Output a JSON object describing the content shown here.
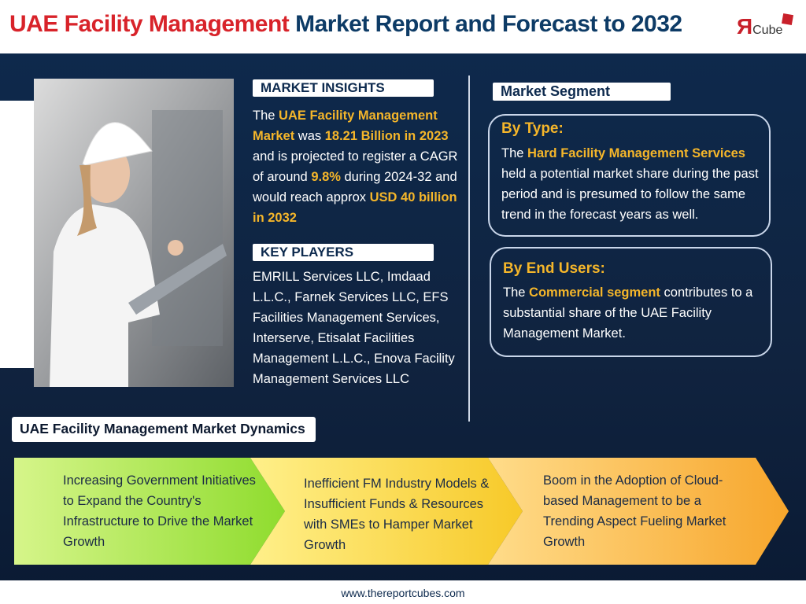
{
  "header": {
    "title_highlight": "UAE Facility Management",
    "title_rest": "Market Report and Forecast to 2032",
    "logo": {
      "letter": "Я",
      "text": "Cube"
    }
  },
  "insights": {
    "heading": "MARKET INSIGHTS",
    "text": [
      "The ",
      "UAE Facility Management Market",
      " was ",
      "18.21 Billion in 2023",
      " and is projected to register a CAGR of around ",
      "9.8%",
      " during 2024-32 and would reach approx ",
      "USD 40 billion in 2032"
    ]
  },
  "key_players": {
    "heading": "KEY PLAYERS",
    "text": "EMRILL Services LLC, Imdaad L.L.C., Farnek Services LLC, EFS Facilities Management Services, Interserve, Etisalat Facilities Management L.L.C., Enova Facility Management Services LLC"
  },
  "segment": {
    "heading": "Market Segment",
    "by_type": {
      "title": "By Type:",
      "text": [
        "The ",
        "Hard Facility Management Services",
        " held a potential market share during the past period and is presumed to follow the same trend in the forecast years as well."
      ]
    },
    "by_end_users": {
      "title": "By End Users:",
      "text": [
        "The ",
        "Commercial segment",
        " contributes to a substantial share of the UAE Facility Management Market."
      ]
    }
  },
  "dynamics": {
    "heading": "UAE Facility Management Market Dynamics",
    "items": [
      "Increasing Government Initiatives to Expand the Country's Infrastructure to Drive the Market Growth",
      "Inefficient FM Industry Models & Insufficient Funds & Resources with SMEs to Hamper Market Growth",
      "Boom in the Adoption of Cloud-based Management to be a Trending Aspect Fueling Market Growth"
    ]
  },
  "footer": {
    "url": "www.thereportcubes.com"
  }
}
